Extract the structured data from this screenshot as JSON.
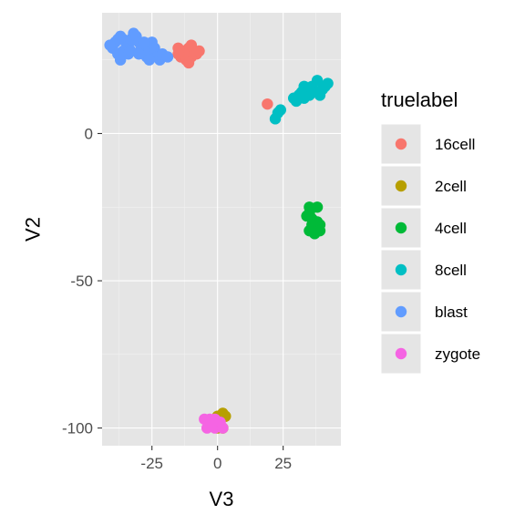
{
  "chart_data": {
    "type": "scatter",
    "xlabel": "V3",
    "ylabel": "V2",
    "xlim": [
      -44,
      47
    ],
    "ylim": [
      -106,
      41
    ],
    "x_ticks": [
      -25,
      0,
      25
    ],
    "x_tick_labels": [
      "-25",
      "0",
      "25"
    ],
    "y_ticks": [
      -100,
      -50,
      0
    ],
    "y_tick_labels": [
      "-100",
      "-50",
      "0"
    ],
    "grid": true,
    "legend": {
      "title": "truelabel",
      "placement": "right"
    },
    "series": [
      {
        "name": "16cell",
        "color": "#F8766D",
        "points": [
          [
            -15,
            29
          ],
          [
            -13,
            28
          ],
          [
            -11,
            29
          ],
          [
            -10,
            30
          ],
          [
            -9,
            28
          ],
          [
            -14,
            26
          ],
          [
            -12,
            25
          ],
          [
            -10,
            26
          ],
          [
            -8,
            27
          ],
          [
            -13,
            27
          ],
          [
            -11,
            24
          ],
          [
            -15,
            27
          ],
          [
            -7,
            28
          ],
          [
            19,
            10
          ]
        ]
      },
      {
        "name": "2cell",
        "color": "#B79F00",
        "points": [
          [
            0,
            -96
          ],
          [
            1,
            -97
          ],
          [
            2,
            -95
          ],
          [
            3,
            -96
          ],
          [
            1,
            -99
          ],
          [
            2,
            -100
          ],
          [
            0,
            -100
          ]
        ]
      },
      {
        "name": "4cell",
        "color": "#00BA38",
        "points": [
          [
            35,
            -25
          ],
          [
            38,
            -25
          ],
          [
            35,
            -27
          ],
          [
            36,
            -29
          ],
          [
            38,
            -30
          ],
          [
            39,
            -31
          ],
          [
            36,
            -31
          ],
          [
            37,
            -32
          ],
          [
            35,
            -33
          ],
          [
            39,
            -33
          ],
          [
            37,
            -34
          ],
          [
            34,
            -28
          ]
        ]
      },
      {
        "name": "8cell",
        "color": "#00BFC4",
        "points": [
          [
            22,
            5
          ],
          [
            23,
            7
          ],
          [
            24,
            8
          ],
          [
            29,
            12
          ],
          [
            31,
            13
          ],
          [
            30,
            11
          ],
          [
            33,
            16
          ],
          [
            33,
            12
          ],
          [
            35,
            13
          ],
          [
            36,
            16
          ],
          [
            38,
            14
          ],
          [
            38,
            18
          ],
          [
            40,
            15
          ],
          [
            41,
            16
          ],
          [
            42,
            17
          ],
          [
            39,
            13
          ],
          [
            32,
            14
          ]
        ]
      },
      {
        "name": "blast",
        "color": "#619CFF",
        "points": [
          [
            -40,
            29
          ],
          [
            -39,
            31
          ],
          [
            -38,
            32
          ],
          [
            -37,
            33
          ],
          [
            -36,
            32
          ],
          [
            -35,
            31
          ],
          [
            -34,
            30
          ],
          [
            -33,
            32
          ],
          [
            -32,
            34
          ],
          [
            -31,
            33
          ],
          [
            -30,
            31
          ],
          [
            -29,
            29
          ],
          [
            -28,
            27
          ],
          [
            -27,
            26
          ],
          [
            -26,
            28
          ],
          [
            -25,
            31
          ],
          [
            -24,
            29
          ],
          [
            -23,
            26
          ],
          [
            -22,
            25
          ],
          [
            -21,
            27
          ],
          [
            -36,
            28
          ],
          [
            -34,
            27
          ],
          [
            -38,
            27
          ],
          [
            -37,
            25
          ],
          [
            -33,
            28
          ],
          [
            -30,
            27
          ],
          [
            -26,
            25
          ],
          [
            -19,
            26
          ],
          [
            -28,
            31
          ],
          [
            -41,
            30
          ]
        ]
      },
      {
        "name": "zygote",
        "color": "#F564E3",
        "points": [
          [
            -5,
            -97
          ],
          [
            -3,
            -97
          ],
          [
            -1,
            -97
          ],
          [
            -4,
            -100
          ],
          [
            -1,
            -100
          ],
          [
            -2,
            -98
          ],
          [
            1,
            -98
          ],
          [
            2,
            -100
          ]
        ]
      }
    ]
  }
}
